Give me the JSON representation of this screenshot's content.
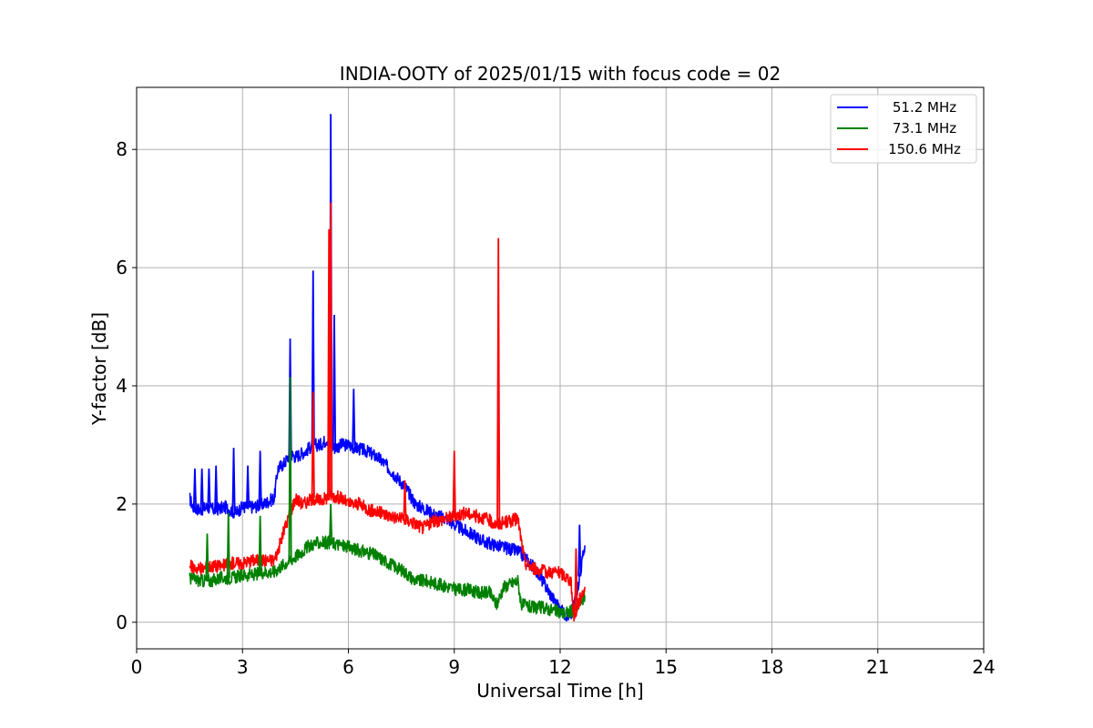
{
  "chart_data": {
    "type": "line",
    "title": "INDIA-OOTY of 2025/01/15 with focus code = 02",
    "xlabel": "Universal Time [h]",
    "ylabel": "Y-factor [dB]",
    "xlim": [
      0,
      24
    ],
    "ylim": [
      -0.45,
      9.05
    ],
    "xticks": [
      0,
      3,
      6,
      9,
      12,
      15,
      18,
      21,
      24
    ],
    "yticks": [
      0,
      2,
      4,
      6,
      8
    ],
    "grid": true,
    "legend_position": "top-right",
    "series": [
      {
        "name": "51.2 MHz",
        "color": "#0000ff",
        "x": [
          1.5,
          1.6,
          1.8,
          2.0,
          2.2,
          2.5,
          2.8,
          3.0,
          3.3,
          3.6,
          3.9,
          4.0,
          4.2,
          4.35,
          4.5,
          4.8,
          5.0,
          5.2,
          5.4,
          5.5,
          5.6,
          5.8,
          6.0,
          6.2,
          6.5,
          6.8,
          7.0,
          7.3,
          7.6,
          7.9,
          8.2,
          8.5,
          8.8,
          9.0,
          9.3,
          9.6,
          9.9,
          10.2,
          10.5,
          10.8,
          11.0,
          11.3,
          11.6,
          11.9,
          12.1,
          12.3,
          12.5,
          12.7
        ],
        "y": [
          2.1,
          1.95,
          1.9,
          1.95,
          1.9,
          1.95,
          1.85,
          1.95,
          1.95,
          2.0,
          2.1,
          2.6,
          2.7,
          2.85,
          2.8,
          2.9,
          3.0,
          3.0,
          3.1,
          3.0,
          2.95,
          3.0,
          3.0,
          2.95,
          2.9,
          2.8,
          2.7,
          2.5,
          2.3,
          2.0,
          1.9,
          1.8,
          1.75,
          1.65,
          1.55,
          1.45,
          1.35,
          1.3,
          1.25,
          1.2,
          1.1,
          0.9,
          0.6,
          0.3,
          0.15,
          0.1,
          0.6,
          1.3
        ]
      },
      {
        "name": "73.1 MHz",
        "color": "#008000",
        "x": [
          1.5,
          1.8,
          2.1,
          2.4,
          2.7,
          3.0,
          3.3,
          3.6,
          3.9,
          4.1,
          4.35,
          4.6,
          4.9,
          5.2,
          5.5,
          5.8,
          6.1,
          6.4,
          6.7,
          7.0,
          7.3,
          7.6,
          7.9,
          8.2,
          8.5,
          8.8,
          9.1,
          9.4,
          9.7,
          10.0,
          10.2,
          10.4,
          10.6,
          10.8,
          10.9,
          11.2,
          11.5,
          11.8,
          12.1,
          12.4,
          12.7
        ],
        "y": [
          0.75,
          0.7,
          0.7,
          0.75,
          0.75,
          0.8,
          0.8,
          0.85,
          0.85,
          0.95,
          1.05,
          1.15,
          1.3,
          1.35,
          1.35,
          1.3,
          1.25,
          1.2,
          1.15,
          1.05,
          0.95,
          0.85,
          0.7,
          0.7,
          0.65,
          0.6,
          0.55,
          0.55,
          0.5,
          0.5,
          0.3,
          0.6,
          0.65,
          0.7,
          0.3,
          0.25,
          0.25,
          0.2,
          0.15,
          0.2,
          0.45
        ]
      },
      {
        "name": "150.6 MHz",
        "color": "#ff0000",
        "x": [
          1.5,
          1.8,
          2.1,
          2.4,
          2.7,
          3.0,
          3.3,
          3.6,
          3.9,
          4.0,
          4.2,
          4.5,
          4.7,
          5.0,
          5.2,
          5.5,
          5.8,
          6.0,
          6.3,
          6.6,
          6.9,
          7.2,
          7.5,
          7.8,
          8.1,
          8.4,
          8.7,
          9.0,
          9.3,
          9.6,
          9.9,
          10.2,
          10.5,
          10.8,
          11.0,
          11.3,
          11.6,
          11.9,
          12.1,
          12.3,
          12.4,
          12.5,
          12.7
        ],
        "y": [
          0.95,
          0.9,
          0.95,
          0.95,
          1.0,
          1.0,
          1.05,
          1.05,
          1.05,
          1.2,
          1.6,
          2.1,
          2.0,
          2.1,
          2.05,
          2.15,
          2.1,
          2.0,
          2.0,
          1.9,
          1.85,
          1.8,
          1.75,
          1.7,
          1.6,
          1.7,
          1.75,
          1.8,
          1.85,
          1.8,
          1.75,
          1.65,
          1.7,
          1.75,
          1.0,
          0.9,
          0.85,
          0.85,
          0.8,
          0.7,
          0.05,
          0.3,
          0.6
        ]
      }
    ],
    "spikes": [
      {
        "series": 0,
        "x": 1.65,
        "y": 2.6
      },
      {
        "series": 0,
        "x": 1.85,
        "y": 2.6
      },
      {
        "series": 0,
        "x": 2.05,
        "y": 2.6
      },
      {
        "series": 0,
        "x": 2.25,
        "y": 2.65
      },
      {
        "series": 0,
        "x": 2.75,
        "y": 2.95
      },
      {
        "series": 0,
        "x": 3.15,
        "y": 2.65
      },
      {
        "series": 0,
        "x": 3.5,
        "y": 2.9
      },
      {
        "series": 0,
        "x": 4.35,
        "y": 4.8
      },
      {
        "series": 0,
        "x": 5.0,
        "y": 5.95
      },
      {
        "series": 0,
        "x": 5.5,
        "y": 8.6
      },
      {
        "series": 0,
        "x": 5.6,
        "y": 5.2
      },
      {
        "series": 0,
        "x": 6.15,
        "y": 3.95
      },
      {
        "series": 0,
        "x": 12.55,
        "y": 1.65
      },
      {
        "series": 1,
        "x": 2.0,
        "y": 1.5
      },
      {
        "series": 1,
        "x": 2.6,
        "y": 1.85
      },
      {
        "series": 1,
        "x": 3.5,
        "y": 1.8
      },
      {
        "series": 1,
        "x": 4.35,
        "y": 4.15
      },
      {
        "series": 1,
        "x": 5.5,
        "y": 2.0
      },
      {
        "series": 2,
        "x": 5.0,
        "y": 3.9
      },
      {
        "series": 2,
        "x": 5.45,
        "y": 6.65
      },
      {
        "series": 2,
        "x": 5.5,
        "y": 7.1
      },
      {
        "series": 2,
        "x": 7.6,
        "y": 2.4
      },
      {
        "series": 2,
        "x": 9.0,
        "y": 2.9
      },
      {
        "series": 2,
        "x": 10.25,
        "y": 6.5
      },
      {
        "series": 2,
        "x": 12.45,
        "y": 1.25
      }
    ]
  }
}
